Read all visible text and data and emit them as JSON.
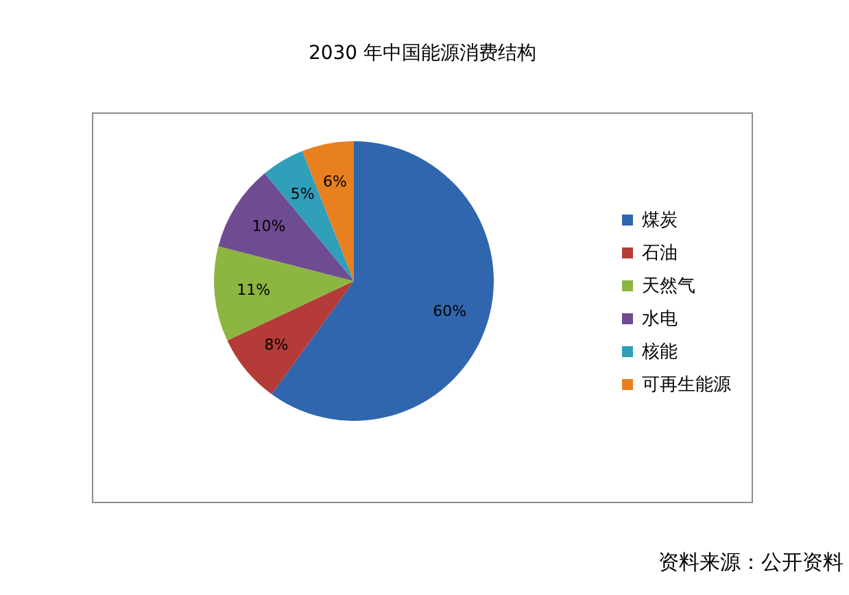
{
  "chart_data": {
    "type": "pie",
    "title": "2030 年中国能源消费结构",
    "categories": [
      "煤炭",
      "石油",
      "天然气",
      "水电",
      "核能",
      "可再生能源"
    ],
    "values": [
      60,
      8,
      11,
      10,
      5,
      6
    ],
    "value_labels": [
      "60%",
      "8%",
      "11%",
      "10%",
      "5%",
      "6%"
    ],
    "colors": [
      "#3066ae",
      "#b43b37",
      "#8db541",
      "#6f4b92",
      "#2f9fba",
      "#e8801f"
    ],
    "legend": "right",
    "annotations": [
      "资料来源：公开资料"
    ]
  }
}
